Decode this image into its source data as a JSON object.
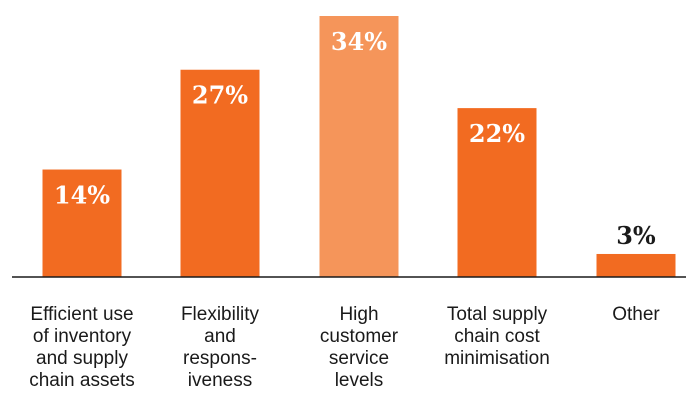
{
  "chart_data": {
    "type": "bar",
    "categories": [
      "Efficient use of inventory and supply chain assets",
      "Flexibility and respons- iveness",
      "High customer service levels",
      "Total supply chain cost minimisation",
      "Other"
    ],
    "category_lines": [
      [
        "Efficient use",
        "of inventory",
        "and supply",
        "chain assets"
      ],
      [
        "Flexibility",
        "and",
        "respons-",
        "iveness"
      ],
      [
        "High",
        "customer",
        "service",
        "levels"
      ],
      [
        "Total supply",
        "chain cost",
        "minimisation"
      ],
      [
        "Other"
      ]
    ],
    "values": [
      14,
      27,
      34,
      22,
      3
    ],
    "value_labels": [
      "14%",
      "27%",
      "34%",
      "22%",
      "3%"
    ],
    "unit": "%",
    "ylim": [
      0,
      34
    ],
    "grid": false,
    "legend": "none",
    "title": "",
    "xlabel": "",
    "ylabel": "",
    "highlight_index": 2,
    "colors": {
      "bar": "#f26b21",
      "highlight_bar": "#f5955a",
      "label_inside": "#ffffff",
      "label_outside": "#1a1a1a",
      "axis": "#1a1a1a"
    }
  }
}
